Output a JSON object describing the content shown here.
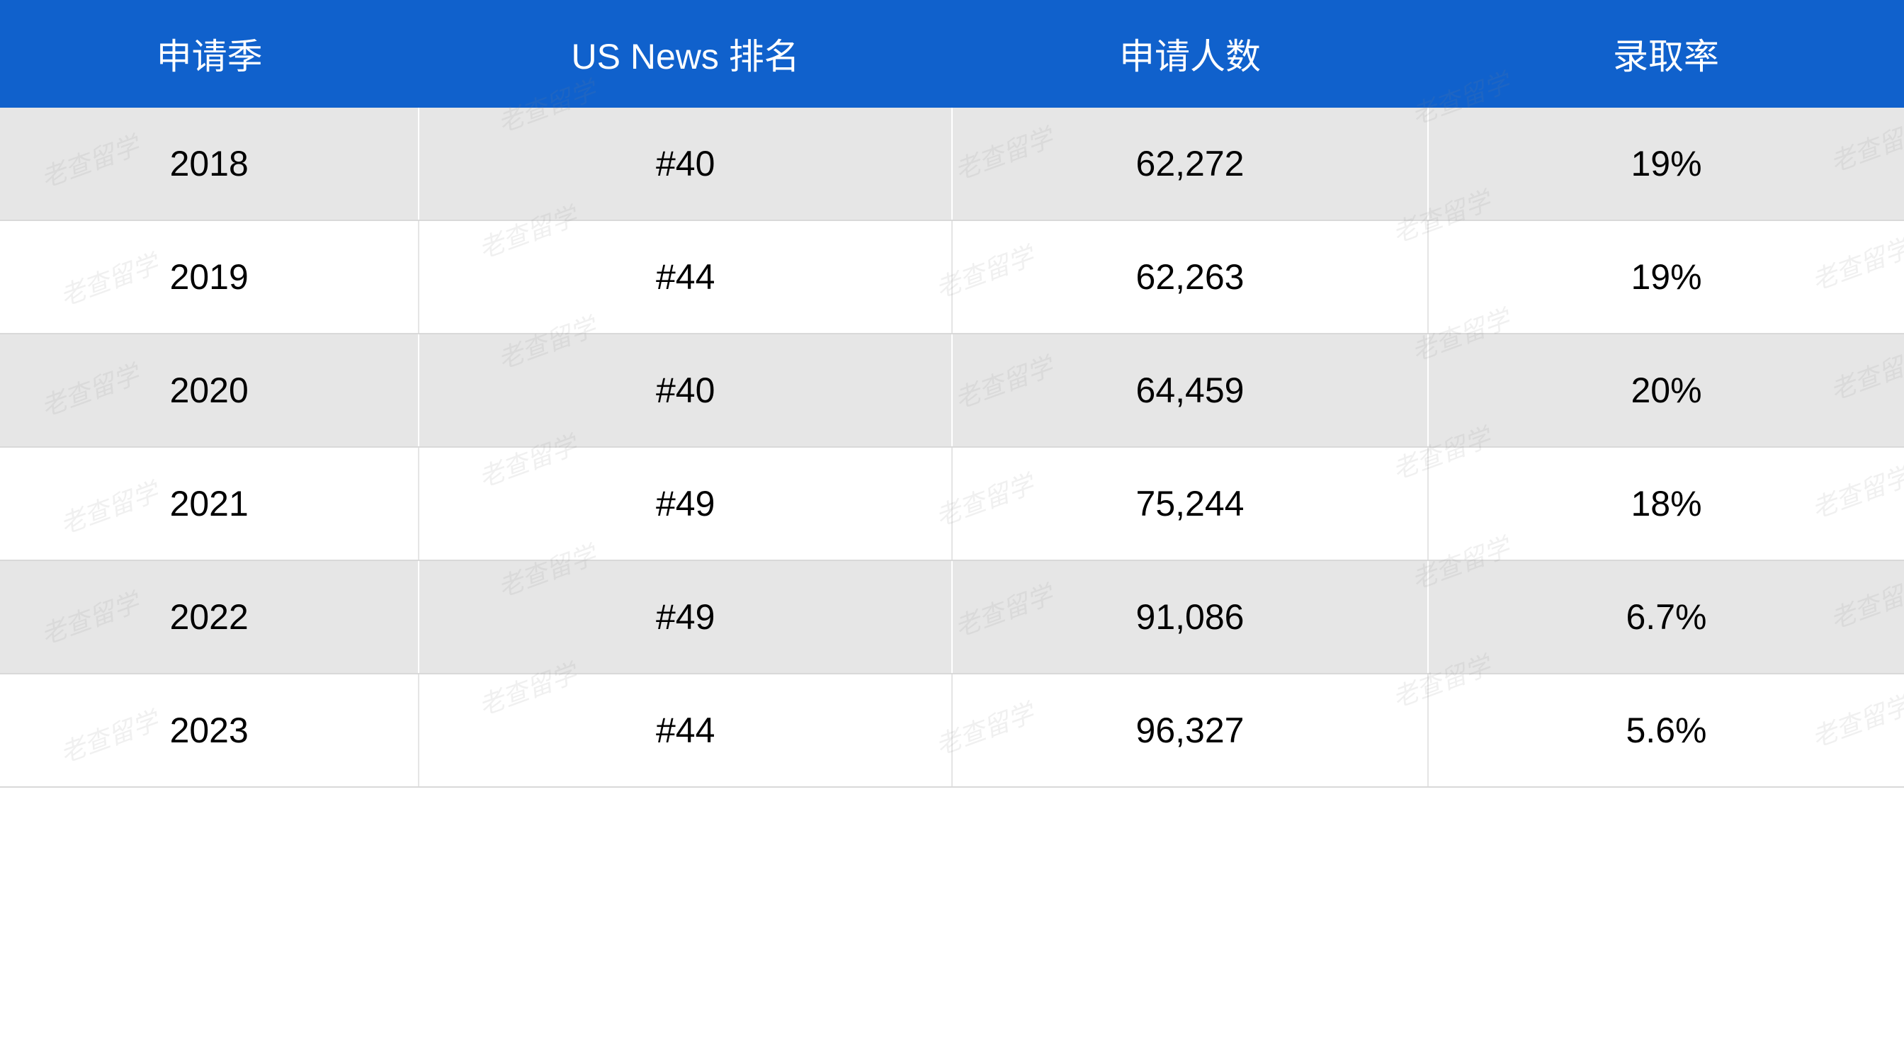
{
  "table": {
    "type": "table",
    "header_bg_color": "#1061cc",
    "header_text_color": "#ffffff",
    "row_odd_bg_color": "#e6e6e6",
    "row_even_bg_color": "#ffffff",
    "cell_text_color": "#000000",
    "border_color": "#d9d9d9",
    "header_fontsize": 50,
    "cell_fontsize": 50,
    "columns": [
      {
        "label": "申请季",
        "width": "22%",
        "align": "center"
      },
      {
        "label": "US News 排名",
        "width": "28%",
        "align": "center"
      },
      {
        "label": "申请人数",
        "width": "25%",
        "align": "center"
      },
      {
        "label": "录取率",
        "width": "25%",
        "align": "center"
      }
    ],
    "rows": [
      [
        "2018",
        "#40",
        "62,272",
        "19%"
      ],
      [
        "2019",
        "#44",
        "62,263",
        "19%"
      ],
      [
        "2020",
        "#40",
        "64,459",
        "20%"
      ],
      [
        "2021",
        "#49",
        "75,244",
        "18%"
      ],
      [
        "2022",
        "#49",
        "91,086",
        "6.7%"
      ],
      [
        "2023",
        "#44",
        "96,327",
        "5.6%"
      ]
    ]
  },
  "watermark": {
    "text": "老查留学",
    "color": "rgba(128,128,128,0.12)",
    "fontsize": 36,
    "rotation_deg": -20
  }
}
